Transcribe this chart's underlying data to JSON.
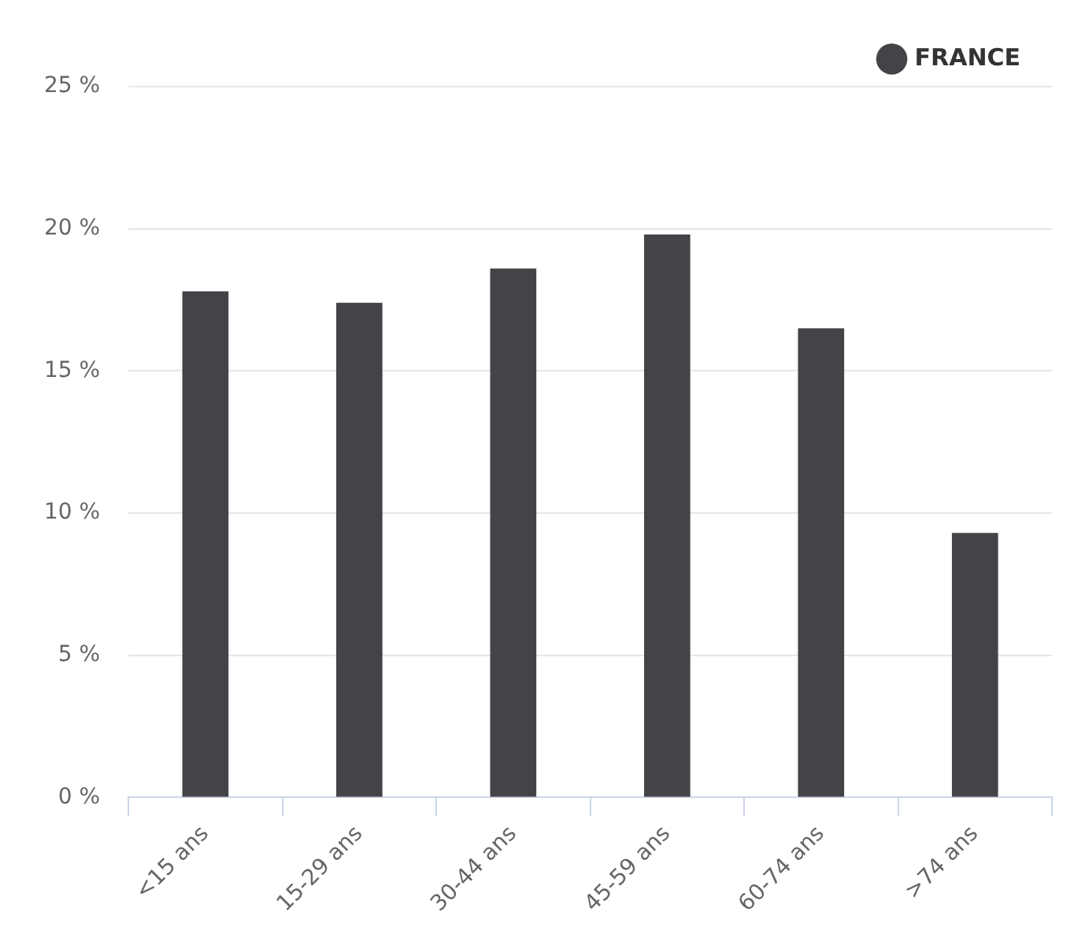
{
  "chart_data": {
    "type": "bar",
    "categories": [
      "<15 ans",
      "15-29 ans",
      "30-44 ans",
      "45-59 ans",
      "60-74 ans",
      ">74 ans"
    ],
    "series": [
      {
        "name": "FRANCE",
        "color": "#434348",
        "values": [
          17.8,
          17.4,
          18.6,
          19.8,
          16.5,
          9.3
        ]
      }
    ],
    "ylim": [
      0,
      25
    ],
    "yticks": [
      {
        "value": 0,
        "label": "0 %"
      },
      {
        "value": 5,
        "label": "5 %"
      },
      {
        "value": 10,
        "label": "10 %"
      },
      {
        "value": 15,
        "label": "15 %"
      },
      {
        "value": 20,
        "label": "20 %"
      },
      {
        "value": 25,
        "label": "25 %"
      }
    ],
    "grid": "y",
    "legend": "top right"
  }
}
